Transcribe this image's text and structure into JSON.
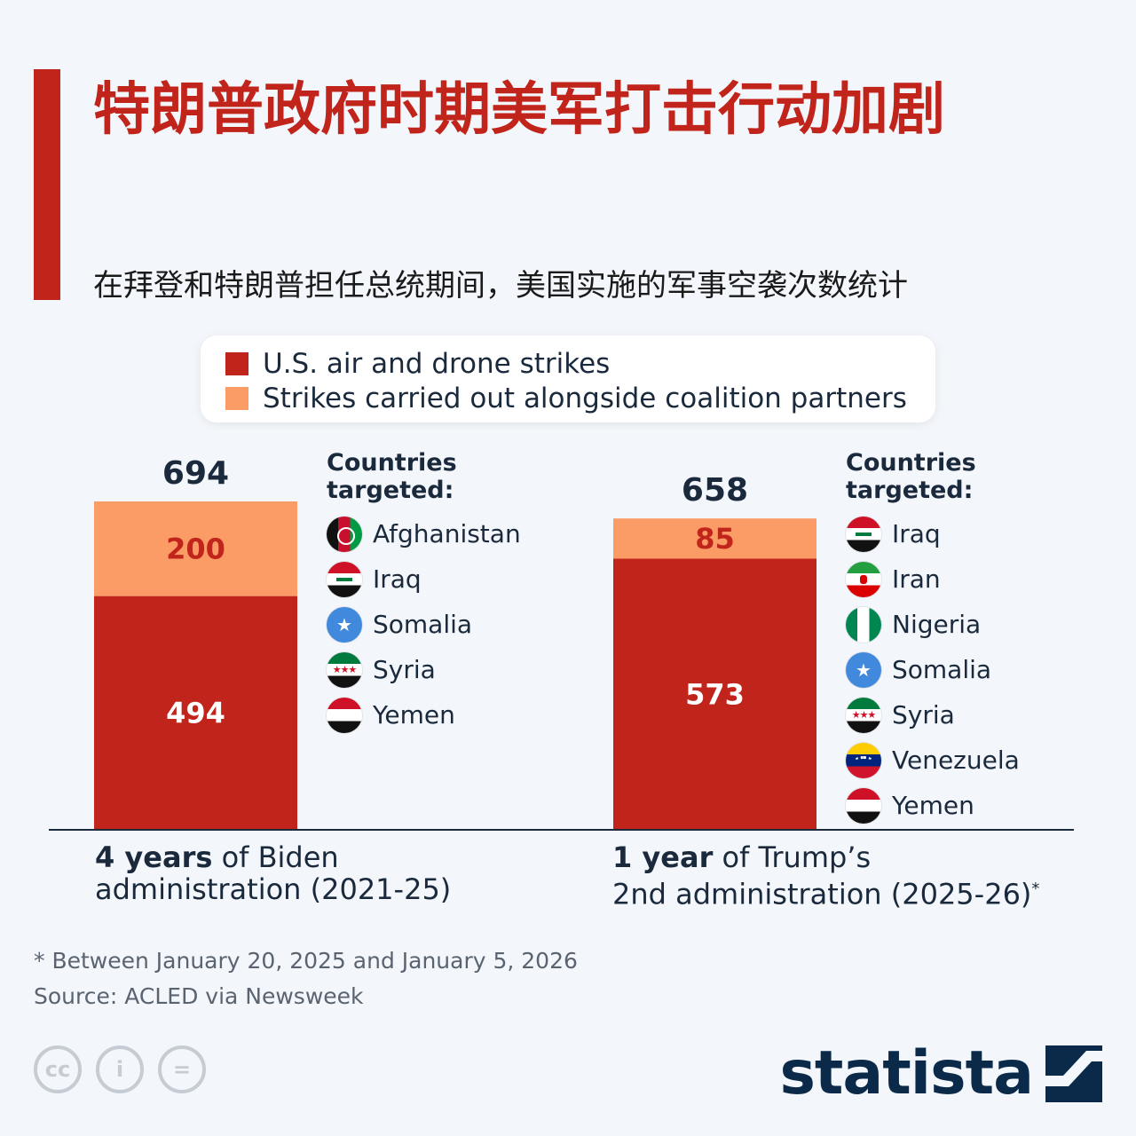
{
  "title": "特朗普政府时期美军打击行动加剧",
  "subtitle": "在拜登和特朗普担任总统期间，美国实施的军事空袭次数统计",
  "legend": {
    "items": [
      {
        "label": "U.S. air and drone strikes",
        "color": "#c0241b"
      },
      {
        "label": "Strikes carried out alongside coalition partners",
        "color": "#fb9b66"
      }
    ]
  },
  "countries_title": "Countries targeted:",
  "groups": [
    {
      "label_bold": "4 years",
      "label_rest": " of Biden",
      "label_line2": "administration (2021-25)",
      "label_mark": "",
      "countries": [
        {
          "name": "Afghanistan",
          "icon": "afghanistan-flag-icon"
        },
        {
          "name": "Iraq",
          "icon": "iraq-flag-icon"
        },
        {
          "name": "Somalia",
          "icon": "somalia-flag-icon"
        },
        {
          "name": "Syria",
          "icon": "syria-flag-icon"
        },
        {
          "name": "Yemen",
          "icon": "yemen-flag-icon"
        }
      ]
    },
    {
      "label_bold": "1 year",
      "label_rest": " of Trump’s",
      "label_line2": "2nd administration (2025-26)",
      "label_mark": "*",
      "countries": [
        {
          "name": "Iraq",
          "icon": "iraq-flag-icon"
        },
        {
          "name": "Iran",
          "icon": "iran-flag-icon"
        },
        {
          "name": "Nigeria",
          "icon": "nigeria-flag-icon"
        },
        {
          "name": "Somalia",
          "icon": "somalia-flag-icon"
        },
        {
          "name": "Syria",
          "icon": "syria-flag-icon"
        },
        {
          "name": "Venezuela",
          "icon": "venezuela-flag-icon"
        },
        {
          "name": "Yemen",
          "icon": "yemen-flag-icon"
        }
      ]
    }
  ],
  "chart_data": {
    "type": "bar",
    "stacked": true,
    "categories": [
      "4 years of Biden administration (2021-25)",
      "1 year of Trump’s 2nd administration (2025-26)*"
    ],
    "series": [
      {
        "name": "U.S. air and drone strikes",
        "values": [
          494,
          573
        ],
        "color": "#c0241b"
      },
      {
        "name": "Strikes carried out alongside coalition partners",
        "values": [
          200,
          85
        ],
        "color": "#fb9b66"
      }
    ],
    "totals": [
      694,
      658
    ],
    "ylim": [
      0,
      694
    ],
    "grid": false,
    "legend_position": "top"
  },
  "footnote": "* Between January 20, 2025 and January 5, 2026",
  "source": "Source: ACLED via Newsweek",
  "brand": "statista",
  "license_icons": [
    "cc-icon",
    "by-icon",
    "nd-icon"
  ],
  "license_labels": [
    "cc",
    "i",
    "="
  ]
}
